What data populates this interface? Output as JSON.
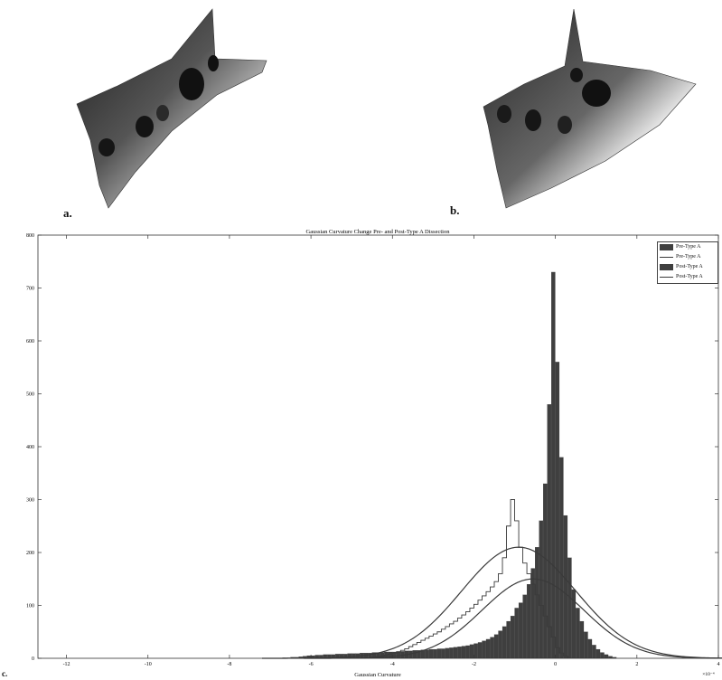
{
  "panels": {
    "a": "a.",
    "b": "b.",
    "c": "c."
  },
  "chart_data": {
    "type": "bar",
    "title": "Gaussian Curvature Change Pre- and Post-Type A Dissection",
    "xlabel": "Gaussian Curvature",
    "ylabel": "",
    "x_multiplier": "×10⁻⁴",
    "xlim": [
      -12.7,
      4
    ],
    "ylim": [
      0,
      800
    ],
    "xticks": [
      -12,
      -10,
      -8,
      -6,
      -4,
      -2,
      0,
      2,
      4
    ],
    "yticks": [
      0,
      100,
      200,
      300,
      400,
      500,
      600,
      700,
      800
    ],
    "legend_position": "top-right",
    "legend": [
      "Pre-Type A",
      "Pre-Type A",
      "Post-Type A",
      "Post-Type A"
    ],
    "bin_width": 0.1,
    "series": [
      {
        "name": "Pre-Type A",
        "kind": "histogram",
        "bin_edges_start": -6.7,
        "counts": [
          1,
          1,
          2,
          2,
          3,
          4,
          5,
          5,
          6,
          6,
          7,
          7,
          7,
          8,
          8,
          8,
          9,
          9,
          9,
          10,
          10,
          10,
          11,
          11,
          11,
          12,
          12,
          12,
          13,
          13,
          14,
          14,
          15,
          15,
          16,
          16,
          17,
          17,
          18,
          18,
          19,
          20,
          21,
          22,
          23,
          24,
          26,
          28,
          30,
          33,
          36,
          40,
          45,
          52,
          60,
          70,
          80,
          95,
          105,
          120,
          140,
          170,
          210,
          260,
          330,
          480,
          730,
          560,
          380,
          270,
          190,
          130,
          95,
          70,
          50,
          36,
          25,
          17,
          11,
          7,
          4,
          2
        ]
      },
      {
        "name": "Pre-Type A",
        "kind": "fit",
        "mean": -0.9,
        "sigma": 1.4,
        "peak": 210
      },
      {
        "name": "Post-Type A",
        "kind": "histogram-outline",
        "bin_edges_start": -4.5,
        "counts": [
          2,
          3,
          4,
          6,
          8,
          10,
          12,
          15,
          18,
          22,
          26,
          30,
          34,
          38,
          42,
          46,
          50,
          55,
          60,
          65,
          70,
          76,
          82,
          88,
          95,
          102,
          110,
          118,
          126,
          135,
          145,
          160,
          190,
          250,
          300,
          260,
          210,
          180,
          160,
          140,
          120,
          100,
          80,
          60,
          40,
          20,
          10,
          4
        ]
      },
      {
        "name": "Post-Type A",
        "kind": "fit",
        "mean": -0.55,
        "sigma": 1.25,
        "peak": 150
      }
    ]
  }
}
